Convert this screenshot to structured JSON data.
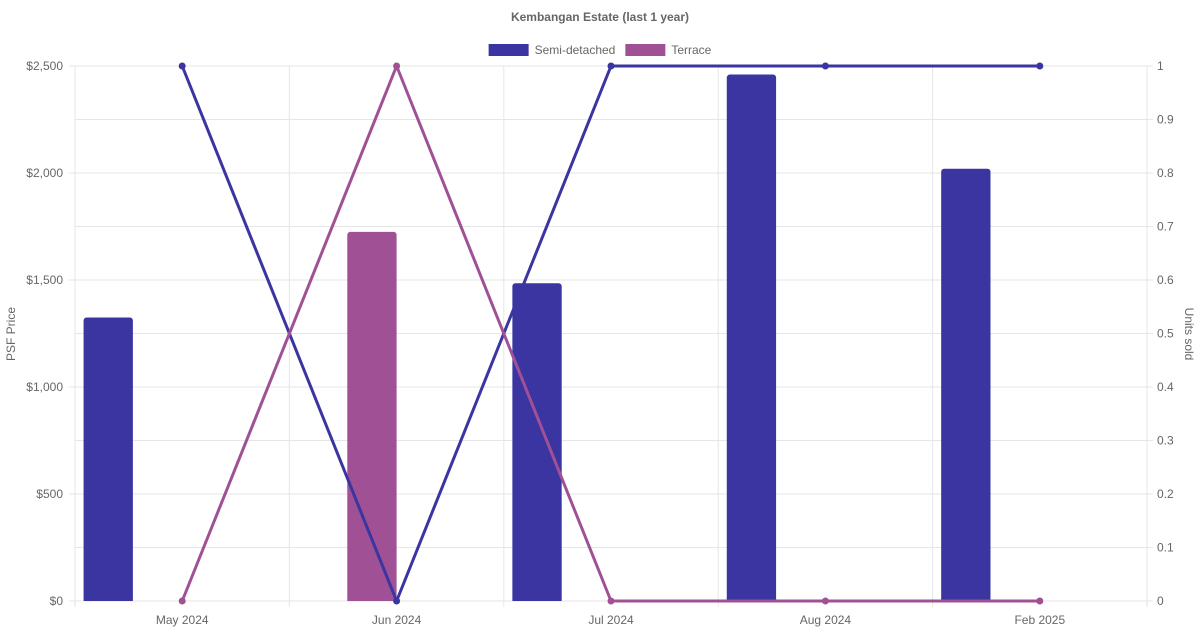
{
  "chart_data": {
    "type": "bar",
    "title": "Kembangan Estate (last 1 year)",
    "categories": [
      "May 2024",
      "Jun 2024",
      "Jul 2024",
      "Aug 2024",
      "Feb 2025"
    ],
    "legend": [
      {
        "name": "Semi-detached",
        "color": "#3a35a0"
      },
      {
        "name": "Terrace",
        "color": "#a05195"
      }
    ],
    "left_axis": {
      "title": "PSF Price",
      "range": [
        0,
        2500
      ],
      "ticks": [
        0,
        500,
        1000,
        1500,
        2000,
        2500
      ],
      "tick_labels": [
        "$0",
        "$500",
        "$1,000",
        "$1,500",
        "$2,000",
        "$2,500"
      ]
    },
    "right_axis": {
      "title": "Units sold",
      "range": [
        0,
        1
      ],
      "ticks": [
        0,
        0.1,
        0.2,
        0.3,
        0.4,
        0.5,
        0.6,
        0.7,
        0.8,
        0.9,
        1
      ],
      "tick_labels": [
        "0",
        "0.1",
        "0.2",
        "0.3",
        "0.4",
        "0.5",
        "0.6",
        "0.7",
        "0.8",
        "0.9",
        "1"
      ]
    },
    "bar_series": [
      {
        "name": "Semi-detached",
        "color": "#3a35a0",
        "axis": "left",
        "values": [
          1325,
          null,
          1485,
          2460,
          2020
        ]
      },
      {
        "name": "Terrace",
        "color": "#a05195",
        "axis": "left",
        "values": [
          null,
          1725,
          null,
          null,
          null
        ]
      }
    ],
    "line_series": [
      {
        "name": "Semi-detached",
        "color": "#3a35a0",
        "axis": "right",
        "values": [
          1,
          0,
          1,
          1,
          1
        ]
      },
      {
        "name": "Terrace",
        "color": "#a05195",
        "axis": "right",
        "values": [
          0,
          1,
          0,
          0,
          0
        ]
      }
    ],
    "grid": true,
    "legend_position": "top-center"
  }
}
